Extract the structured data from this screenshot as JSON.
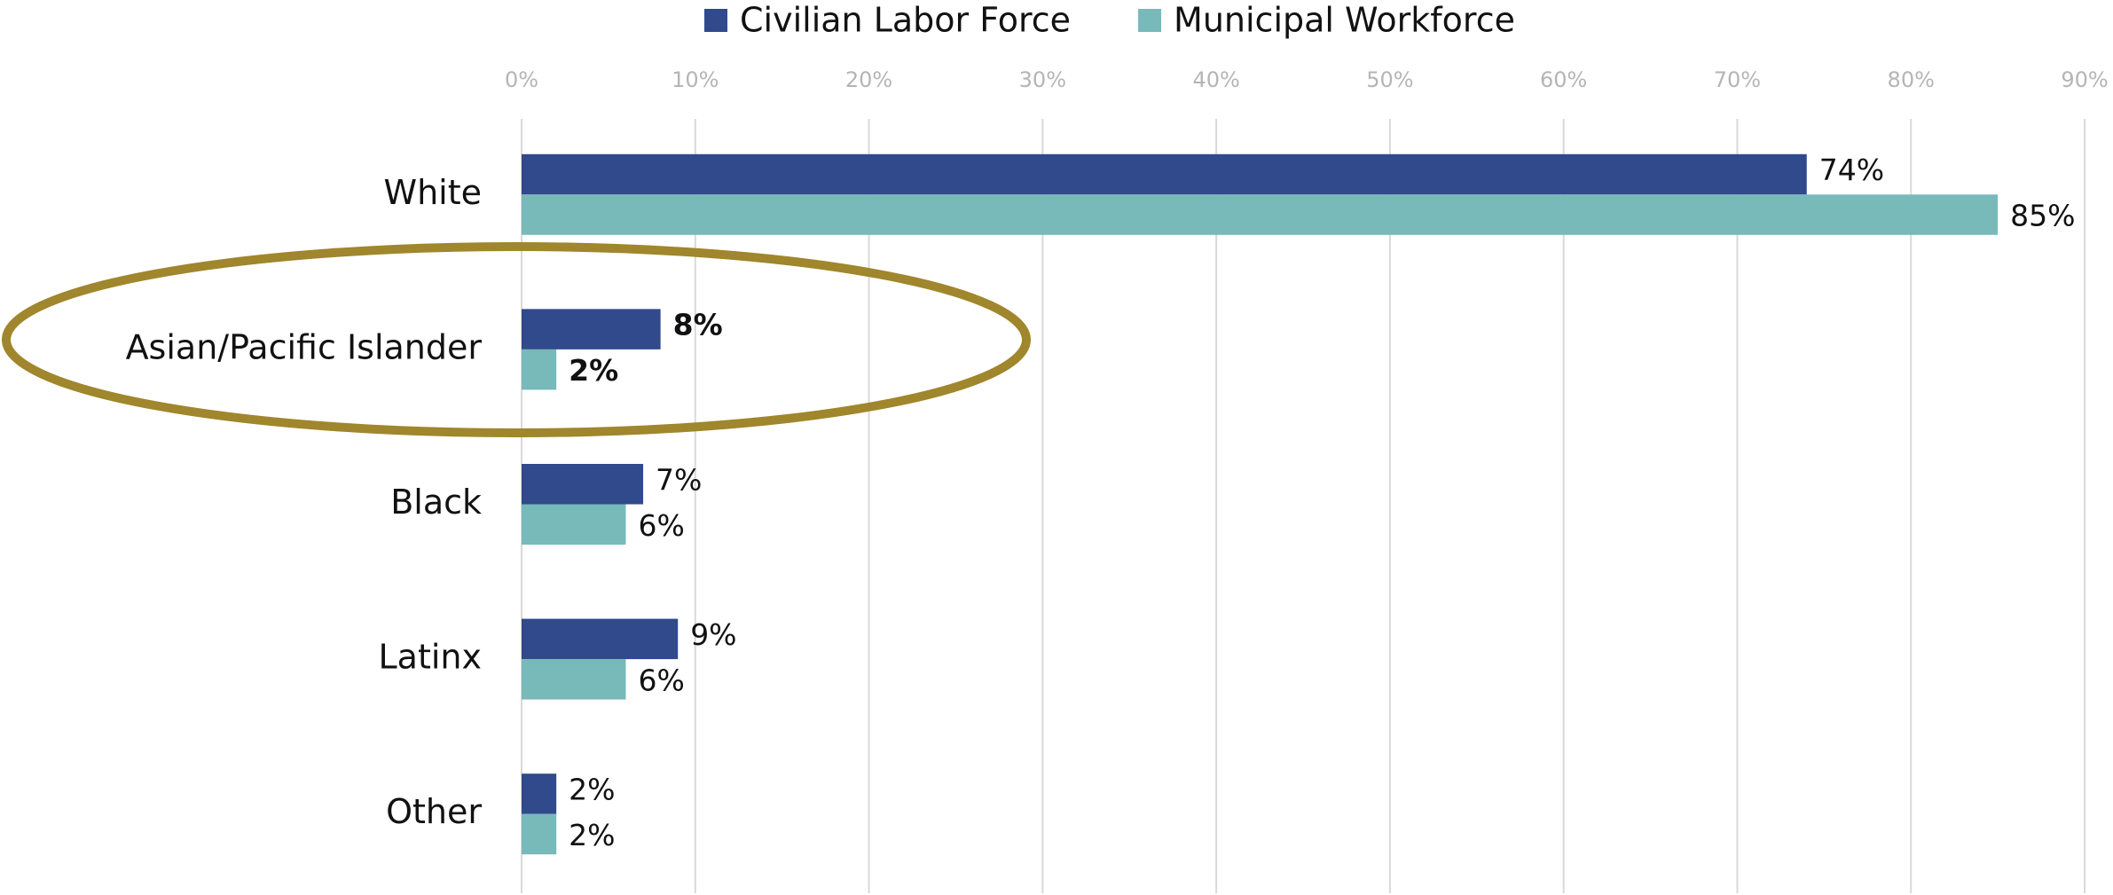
{
  "chart_data": {
    "type": "hbar",
    "categories": [
      "White",
      "Asian/Pacific Islander",
      "Black",
      "Latinx",
      "Other"
    ],
    "series": [
      {
        "name": "Civilian Labor Force",
        "color": "#304a8c",
        "values": [
          74,
          8,
          7,
          9,
          2
        ],
        "value_labels": [
          "74%",
          "8%",
          "7%",
          "9%",
          "2%"
        ]
      },
      {
        "name": "Municipal Workforce",
        "color": "#78b9b9",
        "values": [
          85,
          2,
          6,
          6,
          2
        ],
        "value_labels": [
          "85%",
          "2%",
          "6%",
          "6%",
          "2%"
        ]
      }
    ],
    "xlim": [
      0,
      90
    ],
    "xticks": [
      {
        "value": 0,
        "label": "0%"
      },
      {
        "value": 10,
        "label": "10%"
      },
      {
        "value": 20,
        "label": "20%"
      },
      {
        "value": 30,
        "label": "30%"
      },
      {
        "value": 40,
        "label": "40%"
      },
      {
        "value": 50,
        "label": "50%"
      },
      {
        "value": 60,
        "label": "60%"
      },
      {
        "value": 70,
        "label": "70%"
      },
      {
        "value": 80,
        "label": "80%"
      },
      {
        "value": 90,
        "label": "90%"
      }
    ],
    "grid": true,
    "legend": "top"
  }
}
